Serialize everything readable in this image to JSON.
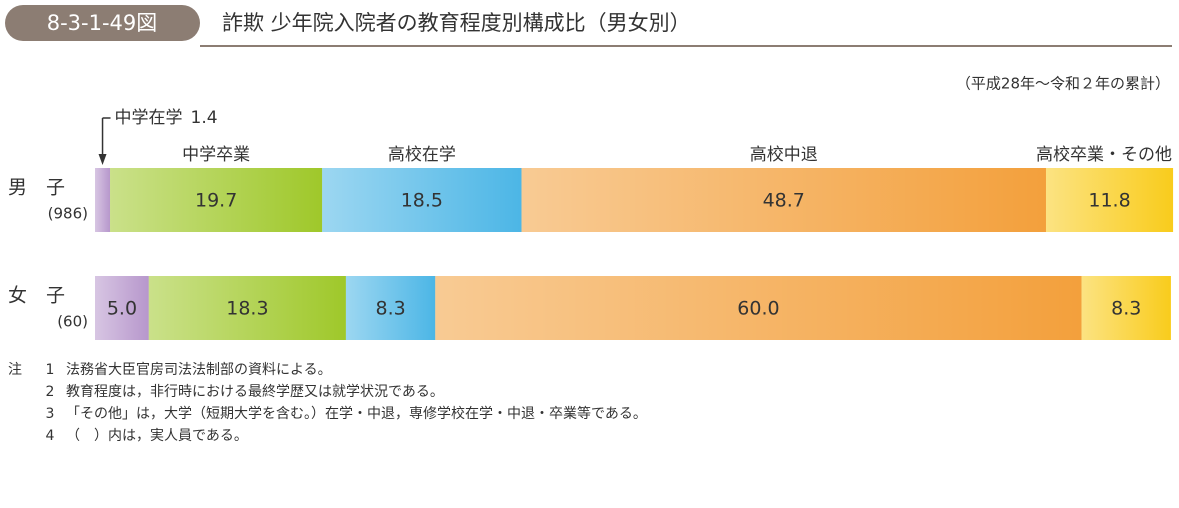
{
  "header": {
    "code": "8-3-1-49図",
    "title": "詐欺 少年院入院者の教育程度別構成比（男女別）",
    "period": "（平成28年～令和２年の累計）"
  },
  "chart_data": {
    "type": "stacked_barh",
    "categories": [
      "男　子",
      "女　子"
    ],
    "category_notes": [
      "(986)",
      "(60)"
    ],
    "xlim": [
      0,
      100
    ],
    "series": [
      {
        "name": "中学在学",
        "color": "#b797cc",
        "values": [
          1.4,
          5.0
        ],
        "value_labels": [
          null,
          "5.0"
        ]
      },
      {
        "name": "中学卒業",
        "color": "#9fc82a",
        "values": [
          19.7,
          18.3
        ]
      },
      {
        "name": "高校在学",
        "color": "#4cb6e6",
        "values": [
          18.5,
          8.3
        ]
      },
      {
        "name": "高校中退",
        "color": "#f3a03c",
        "values": [
          48.7,
          60.0
        ],
        "value_labels": [
          null,
          "60.0"
        ]
      },
      {
        "name": "高校卒業・その他",
        "color": "#f9cc1c",
        "values": [
          11.8,
          8.3
        ]
      }
    ]
  },
  "notes": {
    "label": "注",
    "items": [
      {
        "num": 1,
        "text": "法務省大臣官房司法法制部の資料による。"
      },
      {
        "num": 2,
        "text": "教育程度は，非行時における最終学歴又は就学状況である。"
      },
      {
        "num": 3,
        "text": "「その他」は，大学（短期大学を含む。）在学・中退，専修学校在学・中退・卒業等である。"
      },
      {
        "num": 4,
        "text": "（　）内は，実人員である。"
      }
    ]
  }
}
